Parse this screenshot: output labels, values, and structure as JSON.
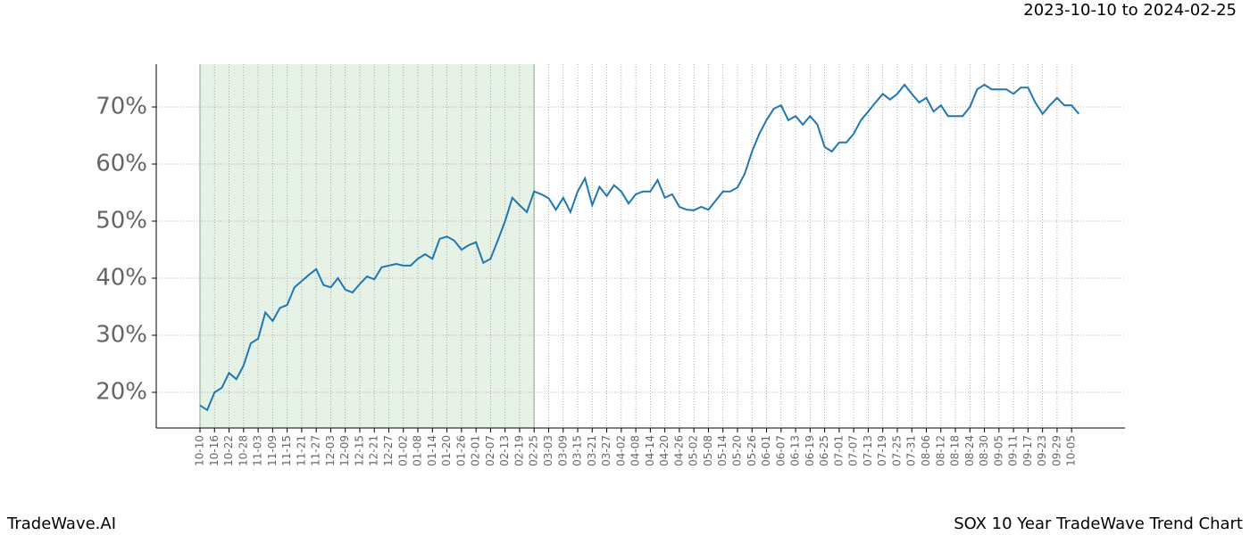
{
  "chart_data": {
    "type": "line",
    "title": "2023-10-10 to 2024-02-25",
    "footer_left": "TradeWave.AI",
    "footer_right": "SOX 10 Year TradeWave Trend Chart",
    "highlight": {
      "from": "10-10",
      "to": "02-25"
    },
    "color": "#1f77b4",
    "grid": true,
    "categories": [
      "10-10",
      null,
      "10-16",
      null,
      "10-22",
      null,
      "10-28",
      null,
      "11-03",
      null,
      "11-09",
      null,
      "11-15",
      null,
      "11-21",
      null,
      "11-27",
      null,
      "12-03",
      null,
      "12-09",
      null,
      "12-15",
      null,
      "12-21",
      null,
      "12-27",
      null,
      "01-02",
      null,
      "01-08",
      null,
      "01-14",
      null,
      "01-20",
      null,
      "01-26",
      null,
      "02-01",
      null,
      "02-07",
      null,
      "02-13",
      null,
      "02-19",
      null,
      "02-25",
      null,
      "03-03",
      null,
      "03-09",
      null,
      "03-15",
      null,
      "03-21",
      null,
      "03-27",
      null,
      "04-02",
      null,
      "04-08",
      null,
      "04-14",
      null,
      "04-20",
      null,
      "04-26",
      null,
      "05-02",
      null,
      "05-08",
      null,
      "05-14",
      null,
      "05-20",
      null,
      "05-26",
      null,
      "06-01",
      null,
      "06-07",
      null,
      "06-13",
      null,
      "06-19",
      null,
      "06-25",
      null,
      "07-01",
      null,
      "07-07",
      null,
      "07-13",
      null,
      "07-19",
      null,
      "07-25",
      null,
      "07-31",
      null,
      "08-06",
      null,
      "08-12",
      null,
      "08-18",
      null,
      "08-24",
      null,
      "08-30",
      null,
      "09-05",
      null,
      "09-11",
      null,
      "09-17",
      null,
      "09-23",
      null,
      "09-29",
      null,
      "10-05",
      null
    ],
    "values": [
      17.7,
      16.9,
      20,
      20.8,
      23.4,
      22.3,
      24.7,
      28.6,
      29.4,
      34,
      32.5,
      34.8,
      35.3,
      38.4,
      39.5,
      40.6,
      41.6,
      38.8,
      38.4,
      40,
      38,
      37.5,
      39,
      40.3,
      39.8,
      41.9,
      42.2,
      42.5,
      42.2,
      42.2,
      43.4,
      44.2,
      43.4,
      46.9,
      47.3,
      46.6,
      45,
      45.8,
      46.3,
      42.7,
      43.4,
      46.6,
      50,
      54.1,
      52.8,
      51.6,
      55.2,
      54.7,
      54,
      52,
      54.1,
      51.6,
      55.2,
      57.5,
      52.8,
      56,
      54.4,
      56.3,
      55.2,
      53.1,
      54.7,
      55.2,
      55.2,
      57.2,
      54.1,
      54.7,
      52.5,
      52,
      51.9,
      52.5,
      52,
      53.6,
      55.2,
      55.2,
      55.9,
      58.3,
      62.2,
      65.3,
      67.7,
      69.7,
      70.3,
      67.7,
      68.4,
      66.9,
      68.4,
      66.9,
      63,
      62.2,
      63.8,
      63.8,
      65.3,
      67.7,
      69.2,
      70.8,
      72.3,
      71.3,
      72.3,
      73.9,
      72.3,
      70.8,
      71.6,
      69.2,
      70.3,
      68.4,
      68.4,
      68.4,
      70,
      73.1,
      73.9,
      73.1,
      73.1,
      73.1,
      72.3,
      73.4,
      73.4,
      70.8,
      68.8,
      70.3,
      71.6,
      70.3,
      70.3,
      68.8
    ],
    "ylim": [
      13.75,
      77.5
    ],
    "yticks": [
      {
        "value": 20,
        "label": "20%"
      },
      {
        "value": 30,
        "label": "30%"
      },
      {
        "value": 40,
        "label": "40%"
      },
      {
        "value": 50,
        "label": "50%"
      },
      {
        "value": 60,
        "label": "60%"
      },
      {
        "value": 70,
        "label": "70%"
      }
    ]
  }
}
